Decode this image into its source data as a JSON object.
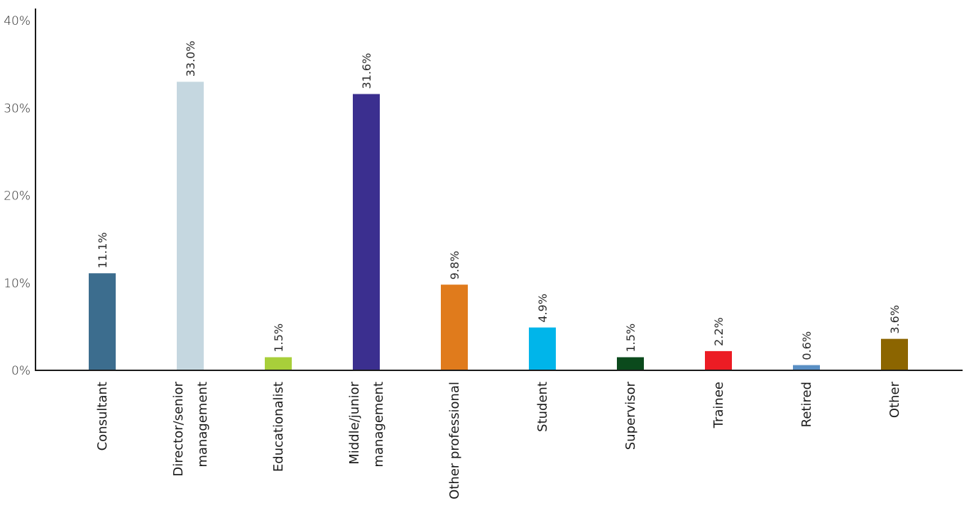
{
  "chart_data": {
    "type": "bar",
    "title": "",
    "xlabel": "",
    "ylabel": "",
    "ylim": [
      0,
      40
    ],
    "yticks": [
      {
        "value": 0,
        "label": "0%"
      },
      {
        "value": 10,
        "label": "10%"
      },
      {
        "value": 20,
        "label": "20%"
      },
      {
        "value": 30,
        "label": "30%"
      },
      {
        "value": 40,
        "label": "40%"
      }
    ],
    "grid": false,
    "legend": "none",
    "categories": [
      {
        "lines": [
          "Consultant"
        ]
      },
      {
        "lines": [
          "Director/senior",
          "management"
        ]
      },
      {
        "lines": [
          "Educationalist"
        ]
      },
      {
        "lines": [
          "Middle/junior",
          "management"
        ]
      },
      {
        "lines": [
          "Other professional"
        ]
      },
      {
        "lines": [
          "Student"
        ]
      },
      {
        "lines": [
          "Supervisor"
        ]
      },
      {
        "lines": [
          "Trainee"
        ]
      },
      {
        "lines": [
          "Retired"
        ]
      },
      {
        "lines": [
          "Other"
        ]
      }
    ],
    "values": [
      11.1,
      33.0,
      1.5,
      31.6,
      9.8,
      4.9,
      1.5,
      2.2,
      0.6,
      3.6
    ],
    "data_labels": [
      "11.1%",
      "33.0%",
      "1.5%",
      "31.6%",
      "9.8%",
      "4.9%",
      "1.5%",
      "2.2%",
      "0.6%",
      "3.6%"
    ],
    "colors": [
      "#3c6d8e",
      "#c5d7e0",
      "#a8cf3a",
      "#3b2f8f",
      "#e07b1c",
      "#00b5ea",
      "#0b4a1c",
      "#ec1c24",
      "#5a8fc4",
      "#8c6500"
    ]
  }
}
